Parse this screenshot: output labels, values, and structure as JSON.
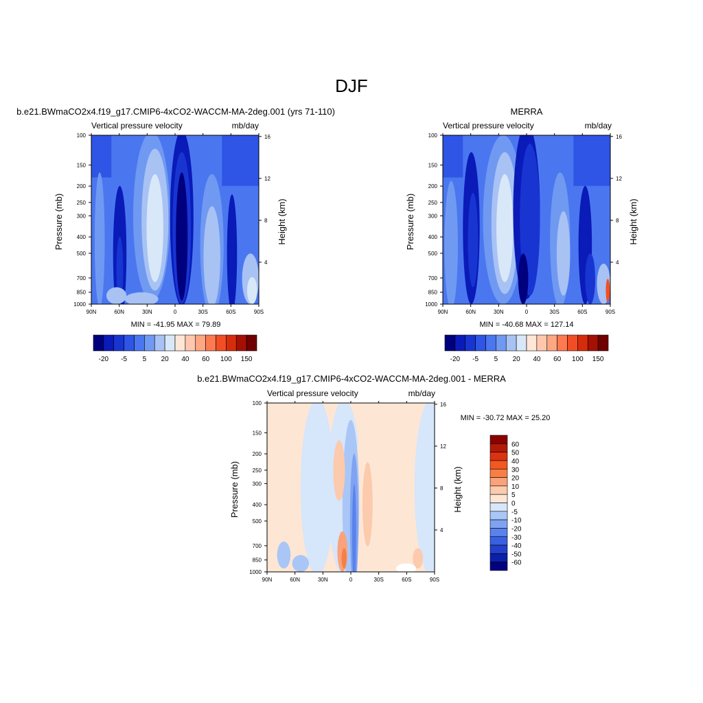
{
  "page_title": "DJF",
  "panels": [
    {
      "title": "b.e21.BWmaCO2x4.f19_g17.CMIP6-4xCO2-WACCM-MA-2deg.001 (yrs 71-110)",
      "left_label": "Vertical pressure velocity",
      "right_label": "mb/day",
      "minmax": "MIN = -41.95  MAX =  79.89"
    },
    {
      "title": "MERRA",
      "left_label": "Vertical pressure velocity",
      "right_label": "mb/day",
      "minmax": "MIN = -40.68  MAX = 127.14"
    },
    {
      "title": "b.e21.BWmaCO2x4.f19_g17.CMIP6-4xCO2-WACCM-MA-2deg.001 - MERRA",
      "left_label": "Vertical pressure velocity",
      "right_label": "mb/day",
      "minmax": "MIN = -30.72  MAX =  25.20"
    }
  ],
  "axes": {
    "ylabel": "Pressure (mb)",
    "y2label": "Height (km)",
    "pressure_ticks": [
      100,
      150,
      200,
      250,
      300,
      400,
      500,
      700,
      850,
      1000
    ],
    "height_ticks": [
      16,
      12,
      8,
      4
    ],
    "lat_ticks": [
      "90N",
      "60N",
      "30N",
      "0",
      "30S",
      "60S",
      "90S"
    ],
    "y_scale": "log"
  },
  "colorbars": {
    "absolute": {
      "labels": [
        "-20",
        "-5",
        "5",
        "20",
        "40",
        "60",
        "100",
        "150"
      ],
      "colors": [
        "#00007F",
        "#0A1BB8",
        "#1835D2",
        "#2E55E5",
        "#4A77F0",
        "#7099F2",
        "#A8C2F4",
        "#D8E8F8",
        "#FFE6D6",
        "#FFC8AE",
        "#FFA683",
        "#FF7A50",
        "#F24E25",
        "#D52D0C",
        "#A51004",
        "#700000"
      ]
    },
    "difference": {
      "labels": [
        "60",
        "50",
        "40",
        "30",
        "20",
        "10",
        "5",
        "0",
        "-5",
        "-10",
        "-20",
        "-30",
        "-40",
        "-50",
        "-60"
      ],
      "colors": [
        "#8B0000",
        "#B21A08",
        "#DA3312",
        "#F2581F",
        "#F77F45",
        "#FAA27A",
        "#FCCAAC",
        "#FDE6D4",
        "#D6E6FB",
        "#A9C6F6",
        "#7FA3F2",
        "#5A82EC",
        "#3A60E2",
        "#2240CC",
        "#0B20A8",
        "#000080"
      ]
    }
  },
  "chart_data": [
    {
      "type": "heatmap",
      "title": "b.e21.BWmaCO2x4.f19_g17.CMIP6-4xCO2-WACCM-MA-2deg.001 (yrs 71-110)",
      "xlabel": "",
      "ylabel": "Pressure (mb)",
      "x_range": [
        "90N",
        "90S"
      ],
      "ylim": [
        1000,
        100
      ],
      "variable": "Vertical pressure velocity",
      "units": "mb/day",
      "min": -41.95,
      "max": 79.89
    },
    {
      "type": "heatmap",
      "title": "MERRA",
      "xlabel": "",
      "ylabel": "Pressure (mb)",
      "x_range": [
        "90N",
        "90S"
      ],
      "ylim": [
        1000,
        100
      ],
      "variable": "Vertical pressure velocity",
      "units": "mb/day",
      "min": -40.68,
      "max": 127.14
    },
    {
      "type": "heatmap",
      "title": "b.e21.BWmaCO2x4.f19_g17.CMIP6-4xCO2-WACCM-MA-2deg.001 - MERRA",
      "xlabel": "",
      "ylabel": "Pressure (mb)",
      "x_range": [
        "90N",
        "90S"
      ],
      "ylim": [
        1000,
        100
      ],
      "variable": "Vertical pressure velocity",
      "units": "mb/day",
      "min": -30.72,
      "max": 25.2
    }
  ]
}
